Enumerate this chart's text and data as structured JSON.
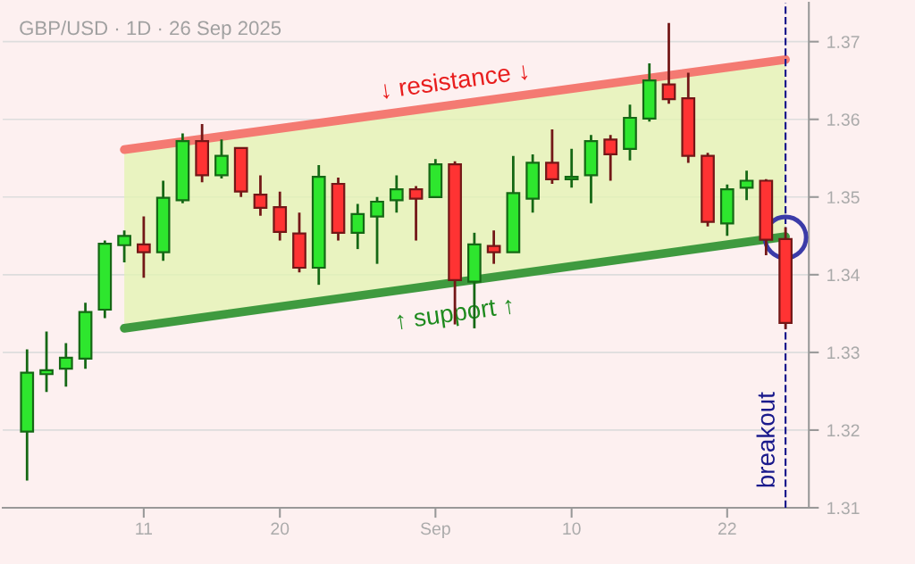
{
  "chart_data": {
    "type": "candlestick",
    "title": "GBP/USD · 1D · 26 Sep 2025",
    "categories": [
      null,
      null,
      null,
      null,
      null,
      null,
      "11",
      null,
      null,
      null,
      null,
      null,
      null,
      "20",
      null,
      null,
      null,
      null,
      null,
      null,
      null,
      "Sep",
      null,
      null,
      null,
      null,
      null,
      null,
      "10",
      null,
      null,
      null,
      null,
      null,
      null,
      null,
      "22",
      null,
      null,
      null
    ],
    "ohlc": [
      [
        1.3198,
        1.3304,
        1.3135,
        1.3274
      ],
      [
        1.3272,
        1.3327,
        1.3249,
        1.3277
      ],
      [
        1.3279,
        1.3312,
        1.3256,
        1.3293
      ],
      [
        1.3292,
        1.3364,
        1.3279,
        1.3352
      ],
      [
        1.3355,
        1.3444,
        1.3344,
        1.344
      ],
      [
        1.3438,
        1.3457,
        1.3416,
        1.345
      ],
      [
        1.3439,
        1.3475,
        1.3396,
        1.3429
      ],
      [
        1.3429,
        1.3521,
        1.3418,
        1.3499
      ],
      [
        1.3496,
        1.3582,
        1.3492,
        1.3572
      ],
      [
        1.3572,
        1.3594,
        1.3519,
        1.3528
      ],
      [
        1.3528,
        1.3574,
        1.3524,
        1.3553
      ],
      [
        1.3563,
        1.3563,
        1.35,
        1.3507
      ],
      [
        1.3503,
        1.3528,
        1.3476,
        1.3486
      ],
      [
        1.3487,
        1.3507,
        1.3444,
        1.3455
      ],
      [
        1.3453,
        1.348,
        1.3403,
        1.3409
      ],
      [
        1.3409,
        1.3541,
        1.3387,
        1.3526
      ],
      [
        1.3517,
        1.3525,
        1.3444,
        1.3454
      ],
      [
        1.3454,
        1.3491,
        1.3433,
        1.3478
      ],
      [
        1.3475,
        1.35,
        1.3414,
        1.3494
      ],
      [
        1.3496,
        1.3528,
        1.348,
        1.351
      ],
      [
        1.351,
        1.3514,
        1.3444,
        1.3498
      ],
      [
        1.35,
        1.3549,
        1.3499,
        1.3542
      ],
      [
        1.3542,
        1.3546,
        1.3336,
        1.3393
      ],
      [
        1.3391,
        1.3454,
        1.3331,
        1.3439
      ],
      [
        1.3437,
        1.3457,
        1.3414,
        1.3429
      ],
      [
        1.3429,
        1.3553,
        1.3429,
        1.3505
      ],
      [
        1.3498,
        1.3555,
        1.348,
        1.3544
      ],
      [
        1.3544,
        1.3587,
        1.3517,
        1.3523
      ],
      [
        1.3523,
        1.3562,
        1.3512,
        1.3526
      ],
      [
        1.3528,
        1.358,
        1.3492,
        1.3572
      ],
      [
        1.3574,
        1.358,
        1.3521,
        1.3555
      ],
      [
        1.3562,
        1.3619,
        1.3547,
        1.3602
      ],
      [
        1.3601,
        1.3672,
        1.3597,
        1.365
      ],
      [
        1.3645,
        1.3724,
        1.362,
        1.3626
      ],
      [
        1.3627,
        1.366,
        1.3544,
        1.3553
      ],
      [
        1.3553,
        1.3557,
        1.3462,
        1.3468
      ],
      [
        1.3466,
        1.3516,
        1.345,
        1.351
      ],
      [
        1.3512,
        1.3534,
        1.3496,
        1.3521
      ],
      [
        1.3521,
        1.3523,
        1.3425,
        1.3445
      ],
      [
        1.3446,
        1.3461,
        1.333,
        1.3338
      ]
    ],
    "colors": [
      "#2ee62e",
      "#2ee62e",
      "#2ee62e",
      "#2ee62e",
      "#2ee62e",
      "#2ee62e",
      "#ff3333",
      "#2ee62e",
      "#2ee62e",
      "#ff3333",
      "#2ee62e",
      "#ff3333",
      "#ff3333",
      "#ff3333",
      "#ff3333",
      "#2ee62e",
      "#ff3333",
      "#2ee62e",
      "#2ee62e",
      "#2ee62e",
      "#ff3333",
      "#2ee62e",
      "#ff3333",
      "#2ee62e",
      "#ff3333",
      "#2ee62e",
      "#2ee62e",
      "#ff3333",
      "#2ee62e",
      "#2ee62e",
      "#ff3333",
      "#2ee62e",
      "#2ee62e",
      "#ff3333",
      "#ff3333",
      "#ff3333",
      "#2ee62e",
      "#2ee62e",
      "#ff3333",
      "#ff3333"
    ],
    "series": [
      {
        "type": "line",
        "name": "↓ resistance ↓",
        "color": "#f47a72",
        "values": [
          null,
          null,
          null,
          null,
          null,
          1.3561,
          null,
          null,
          null,
          null,
          null,
          null,
          null,
          null,
          null,
          null,
          null,
          null,
          null,
          null,
          null,
          null,
          null,
          null,
          null,
          null,
          null,
          null,
          null,
          null,
          null,
          null,
          null,
          null,
          null,
          null,
          null,
          null,
          null,
          1.3677
        ]
      },
      {
        "type": "line",
        "name": "↑ support ↑",
        "color": "#3f9a3f",
        "values": [
          null,
          null,
          null,
          null,
          null,
          1.3331,
          null,
          null,
          null,
          null,
          null,
          null,
          null,
          null,
          null,
          null,
          null,
          null,
          null,
          null,
          null,
          null,
          null,
          null,
          null,
          null,
          null,
          null,
          null,
          null,
          null,
          null,
          null,
          null,
          null,
          null,
          null,
          null,
          null,
          1.3449
        ]
      },
      {
        "type": "scatter",
        "marker": "circle",
        "color": "#3b3ba8",
        "values": [
          null,
          null,
          null,
          null,
          null,
          null,
          null,
          null,
          null,
          null,
          null,
          null,
          null,
          null,
          null,
          null,
          null,
          null,
          null,
          null,
          null,
          null,
          null,
          null,
          null,
          null,
          null,
          null,
          null,
          null,
          null,
          null,
          null,
          null,
          null,
          null,
          null,
          null,
          null,
          1.3448
        ]
      }
    ],
    "annotations": [
      "breakout"
    ],
    "ylim": [
      1.31,
      1.375
    ],
    "yticks": [
      1.31,
      1.32,
      1.33,
      1.34,
      1.35,
      1.36,
      1.37
    ],
    "grid": "y",
    "legend": false
  }
}
